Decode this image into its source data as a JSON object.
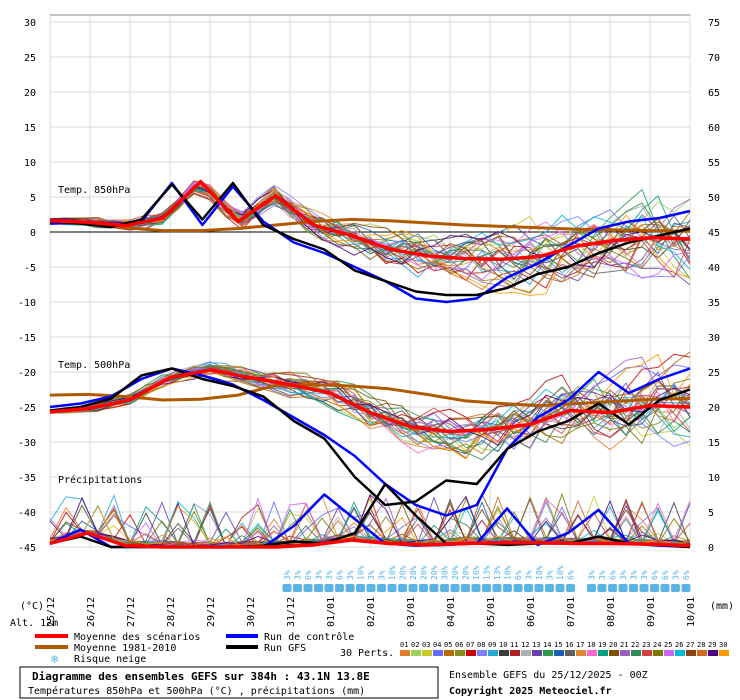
{
  "chart_data": {
    "type": "line",
    "title": "Diagramme des ensembles GEFS sur 384h : 43.1N 13.8E",
    "subtitle": "Températures 850hPa et 500hPa (°C) , précipitations (mm)",
    "run_info": "Ensemble GEFS du 25/12/2025 - 00Z",
    "copyright": "Copyright 2025 Meteociel.fr",
    "altitude": "Alt. 12m",
    "left_axis_unit": "(°C)",
    "right_axis_unit": "(mm)",
    "ylim": [
      -45,
      30
    ],
    "left_ticks": [
      30,
      25,
      20,
      15,
      10,
      5,
      0,
      -5,
      -10,
      -15,
      -20,
      -25,
      -30,
      -35,
      -40,
      -45
    ],
    "right_ticks": [
      75,
      70,
      65,
      60,
      55,
      50,
      45,
      40,
      35,
      30,
      25,
      20,
      15,
      10,
      5,
      0
    ],
    "x_labels": [
      "25/12",
      "26/12",
      "27/12",
      "28/12",
      "29/12",
      "30/12",
      "31/12",
      "01/01",
      "02/01",
      "03/01",
      "04/01",
      "05/01",
      "06/01",
      "07/01",
      "08/01",
      "09/01",
      "10/01"
    ],
    "panel_labels": [
      "Temp. 850hPa",
      "Temp. 500hPa",
      "Précipitations"
    ],
    "series": [
      {
        "name": "Moyenne des scénarios",
        "t850": [
          1.6,
          1.4,
          0.9,
          2.0,
          7.2,
          1.5,
          5.2,
          1.0,
          -0.5,
          -2.4,
          -3.4,
          -3.8,
          -3.9,
          -3.5,
          -2.0,
          -1.2,
          -0.8,
          -1.0
        ],
        "t500": [
          -25.7,
          -25.2,
          -24.0,
          -20.8,
          -19.7,
          -20.8,
          -21.8,
          -23.0,
          -25.8,
          -27.8,
          -28.5,
          -28.2,
          -27.5,
          -25.5,
          -25.8,
          -24.8,
          -25.0
        ],
        "precip": [
          0.5,
          2.0,
          0.2,
          0,
          0,
          0,
          0,
          0.3,
          1.0,
          0.5,
          0.3,
          0.5,
          0.6,
          0.6,
          0.5,
          0.5,
          0.4,
          0.2
        ]
      },
      {
        "name": "Moyenne 1981-2010",
        "t850": [
          1.5,
          1.2,
          0.6,
          0.2,
          0.2,
          0.5,
          1.0,
          1.5,
          1.8,
          1.6,
          1.3,
          1.0,
          0.8,
          0.6,
          0.4,
          0.3,
          0.2,
          0.1
        ],
        "t500": [
          -23.3,
          -23.2,
          -23.5,
          -24.0,
          -23.9,
          -23.3,
          -21.9,
          -21.8,
          -22.0,
          -22.4,
          -23.2,
          -24.1,
          -24.5,
          -24.8,
          -24.5,
          -24.2,
          -23.9,
          -23.8
        ]
      },
      {
        "name": "Run de contrôle",
        "t850": [
          1.2,
          1.3,
          0.9,
          1.5,
          7.0,
          1.0,
          6.5,
          1.5,
          -1.5,
          -3.0,
          -5.0,
          -7.0,
          -9.5,
          -10.0,
          -9.5,
          -6.5,
          -4.5,
          -2.0,
          0.5,
          1.5,
          2.0,
          3.0
        ],
        "t500": [
          -25.0,
          -24.5,
          -23.5,
          -21.0,
          -19.5,
          -20.5,
          -21.8,
          -24.0,
          -26.5,
          -29.0,
          -32.0,
          -36.0,
          -39.0,
          -40.5,
          -39.0,
          -31.0,
          -26.5,
          -24.0,
          -20.0,
          -23.0,
          -21.0,
          -19.5
        ],
        "precip": [
          0.5,
          2.5,
          0,
          0,
          0,
          0,
          0,
          0,
          3.0,
          7.5,
          4.0,
          0.5,
          0.2,
          0.3,
          0.5,
          5.5,
          0.3,
          2.0,
          5.3,
          0.5,
          0.2,
          0
        ]
      },
      {
        "name": "Run GFS",
        "t850": [
          1.5,
          1.2,
          0.7,
          1.8,
          6.8,
          1.8,
          7.0,
          1.0,
          -1.0,
          -2.5,
          -5.5,
          -7.0,
          -8.5,
          -9.0,
          -9.0,
          -8.0,
          -6.0,
          -5.0,
          -3.0,
          -1.5,
          -0.5,
          0.5
        ],
        "t500": [
          -25.5,
          -25.0,
          -23.8,
          -20.5,
          -19.5,
          -21.0,
          -22.0,
          -23.5,
          -27.0,
          -29.5,
          -35.0,
          -39.0,
          -38.5,
          -35.5,
          -36.0,
          -31.0,
          -28.5,
          -27.0,
          -24.5,
          -27.5,
          -24.0,
          -22.5
        ],
        "precip": [
          0.5,
          1.5,
          0,
          0,
          0,
          0,
          0,
          0.2,
          0.8,
          0.5,
          2.0,
          9.0,
          4.5,
          0.5,
          0.5,
          0.3,
          0.5,
          0.5,
          1.5,
          0.5,
          0.3,
          0
        ]
      }
    ],
    "members_label": "30 Perts.",
    "member_ids": [
      "01",
      "02",
      "03",
      "04",
      "05",
      "06",
      "07",
      "08",
      "09",
      "10",
      "11",
      "12",
      "13",
      "14",
      "15",
      "16",
      "17",
      "18",
      "19",
      "20",
      "21",
      "22",
      "23",
      "24",
      "25",
      "26",
      "27",
      "28",
      "29",
      "30"
    ],
    "member_colors": [
      "#e27d2e",
      "#9fd15a",
      "#c9c92e",
      "#6a6aff",
      "#b56b00",
      "#8a8a20",
      "#cc0000",
      "#8080ff",
      "#2aa6d6",
      "#3b3b3b",
      "#b02020",
      "#b0b0b0",
      "#6b3fb0",
      "#2b9a4a",
      "#1a5fb4",
      "#606060",
      "#db8a2e",
      "#ff66cc",
      "#00a080",
      "#805000",
      "#a060c0",
      "#2e8b57",
      "#d04040",
      "#7a7a00",
      "#cc66ff",
      "#00bcd4",
      "#8b4513",
      "#d2691e",
      "#4b0082",
      "#ff9900"
    ],
    "snow_risk_label": "Risque neige",
    "snow_risk": [
      "3%",
      "3%",
      "6%",
      "3%",
      "3%",
      "6%",
      "3%",
      "10%",
      "3%",
      "3%",
      "10%",
      "20%",
      "20%",
      "20%",
      "20%",
      "30%",
      "20%",
      "20%",
      "16%",
      "13%",
      "13%",
      "10%",
      "6%",
      "3%",
      "10%",
      "3%",
      "10%",
      "6%",
      "",
      "3%",
      "3%",
      "6%",
      "3%",
      "3%",
      "3%",
      "6%",
      "6%",
      "3%",
      "6%"
    ]
  },
  "colors": {
    "mean": "#ff0000",
    "climate": "#b05a00",
    "control": "#0000ff",
    "gfs": "#000000",
    "snow": "#5ab4e6",
    "grid": "#d8d8d8",
    "zero_line": "#000000"
  }
}
